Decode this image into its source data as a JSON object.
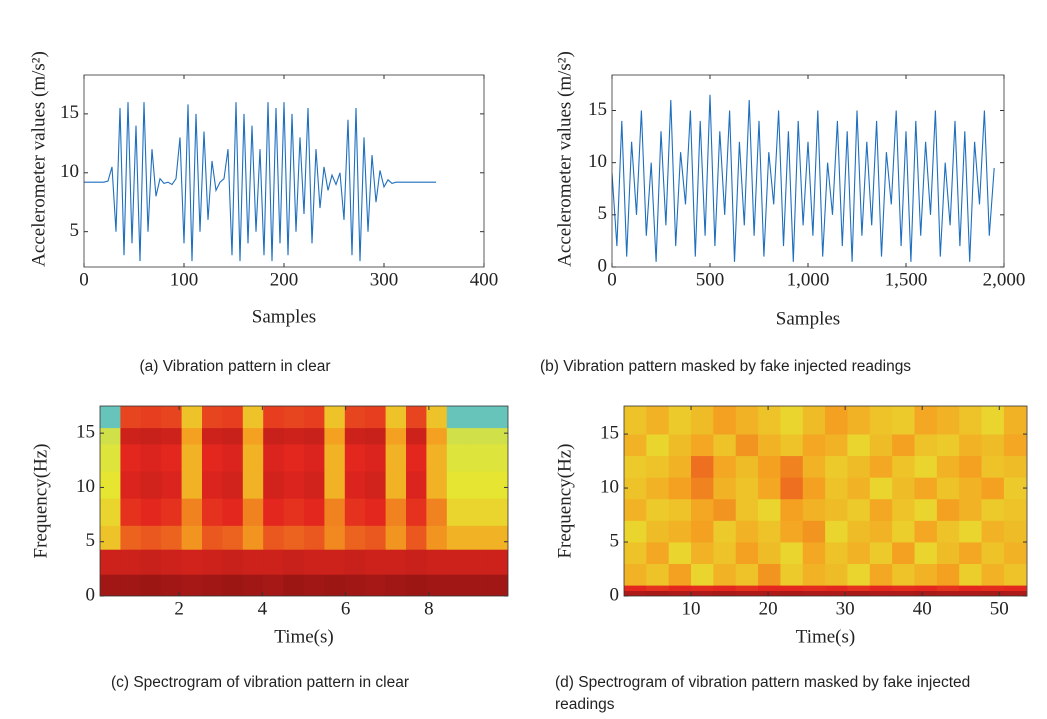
{
  "chart_data": [
    {
      "type": "line",
      "caption": "(a) Vibration pattern in clear",
      "x_label": "Samples",
      "y_label": "Accelerometer values (m/s²)",
      "color": "#1f6fbf",
      "x": [
        0,
        4,
        8,
        12,
        16,
        20,
        24,
        28,
        32,
        36,
        40,
        44,
        48,
        52,
        56,
        60,
        64,
        68,
        72,
        76,
        80,
        84,
        88,
        92,
        96,
        100,
        104,
        108,
        112,
        116,
        120,
        124,
        128,
        132,
        136,
        140,
        144,
        148,
        152,
        156,
        160,
        164,
        168,
        172,
        176,
        180,
        184,
        188,
        192,
        196,
        200,
        204,
        208,
        212,
        216,
        220,
        224,
        228,
        232,
        236,
        240,
        244,
        248,
        252,
        256,
        260,
        264,
        268,
        272,
        276,
        280,
        284,
        288,
        292,
        296,
        300,
        304,
        308,
        312,
        316,
        320,
        324,
        328,
        332,
        336,
        340,
        344,
        348,
        352
      ],
      "values": [
        9.2,
        9.2,
        9.2,
        9.2,
        9.2,
        9.2,
        9.3,
        10.5,
        5,
        15.5,
        3,
        16,
        4,
        14,
        2.5,
        16,
        5,
        12,
        8,
        9.5,
        9.1,
        9.2,
        9.0,
        9.5,
        13,
        4,
        15.8,
        2.5,
        15,
        5,
        13.5,
        6,
        11,
        8.5,
        9.2,
        9.5,
        12,
        3,
        16,
        2.5,
        15,
        4,
        14,
        5,
        12,
        3,
        16,
        2.5,
        15.5,
        4,
        16,
        3,
        15,
        5,
        13,
        6.5,
        15.5,
        4,
        12,
        7,
        10.5,
        8.5,
        9.8,
        9,
        10,
        6,
        14.5,
        3,
        15.5,
        2.5,
        13,
        5,
        11.5,
        7.5,
        10.2,
        8.8,
        9.4,
        9.1,
        9.2,
        9.2,
        9.2,
        9.2,
        9.2,
        9.2,
        9.2,
        9.2,
        9.2,
        9.2,
        9.2
      ],
      "xlim": [
        0,
        400
      ],
      "ylim": [
        2,
        18.3
      ],
      "xticks": [
        0,
        100,
        200,
        300,
        400
      ],
      "yticks": [
        5,
        10,
        15
      ]
    },
    {
      "type": "line",
      "caption": "(b) Vibration pattern masked by fake injected readings",
      "x_label": "Samples",
      "y_label": "Accelerometer values (m/s²)",
      "color": "#1f6fbf",
      "x": [
        0,
        25,
        50,
        75,
        100,
        125,
        150,
        175,
        200,
        225,
        250,
        275,
        300,
        325,
        350,
        375,
        400,
        425,
        450,
        475,
        500,
        525,
        550,
        575,
        600,
        625,
        650,
        675,
        700,
        725,
        750,
        775,
        800,
        825,
        850,
        875,
        900,
        925,
        950,
        975,
        1000,
        1025,
        1050,
        1075,
        1100,
        1125,
        1150,
        1175,
        1200,
        1225,
        1250,
        1275,
        1300,
        1325,
        1350,
        1375,
        1400,
        1425,
        1450,
        1475,
        1500,
        1525,
        1550,
        1575,
        1600,
        1625,
        1650,
        1675,
        1700,
        1725,
        1750,
        1775,
        1800,
        1825,
        1850,
        1875,
        1900,
        1925,
        1950
      ],
      "values": [
        9,
        2,
        14,
        1,
        12,
        5,
        15,
        3,
        10,
        0.5,
        13,
        4,
        16,
        2,
        11,
        6,
        15,
        1,
        14,
        3,
        16.5,
        2,
        13,
        5,
        15,
        0.5,
        12,
        4,
        16,
        3,
        14,
        1,
        11,
        6,
        15,
        2,
        13,
        0.5,
        14,
        4,
        12,
        3,
        15,
        1,
        10,
        5,
        14,
        2,
        13,
        0.5,
        15,
        3,
        12,
        4,
        14,
        1,
        11,
        6,
        15,
        2,
        13,
        0.5,
        14,
        3,
        12,
        5,
        15,
        1,
        10,
        4,
        14,
        2,
        13,
        0.5,
        12,
        6,
        15,
        3,
        9.5
      ],
      "xlim": [
        0,
        2000
      ],
      "ylim": [
        0,
        18.4
      ],
      "xticks": [
        0,
        500,
        {
          "value": 1000,
          "label": "1,000"
        },
        {
          "value": 1500,
          "label": "1,500"
        },
        {
          "value": 2000,
          "label": "2,000"
        }
      ],
      "yticks": [
        0,
        5,
        10,
        15
      ]
    },
    {
      "type": "heatmap",
      "caption": "(c) Spectrogram of vibration pattern in clear",
      "x_label": "Time(s)",
      "y_label": "Frequency(Hz)",
      "colormap": [
        "#3cb8e8",
        "#8fcf8c",
        "#e6e632",
        "#f4a020",
        "#e3261e",
        "#8a1212"
      ],
      "zlim": [
        0,
        1
      ],
      "xedges": [
        0.1,
        0.59,
        1.08,
        1.57,
        2.06,
        2.55,
        3.04,
        3.53,
        4.02,
        4.51,
        5.0,
        5.49,
        5.98,
        6.47,
        6.96,
        7.45,
        7.94,
        8.43,
        8.92,
        9.41,
        9.9
      ],
      "yedges": [
        0,
        2,
        4.3,
        6.5,
        9,
        11.5,
        14,
        15.5,
        17.5
      ],
      "z": [
        [
          0.95,
          0.95,
          0.96,
          0.95,
          0.94,
          0.95,
          0.96,
          0.95,
          0.94,
          0.96,
          0.95,
          0.96,
          0.95,
          0.94,
          0.95,
          0.96,
          0.95,
          0.95,
          0.95,
          0.95
        ],
        [
          0.85,
          0.85,
          0.86,
          0.85,
          0.84,
          0.85,
          0.86,
          0.85,
          0.85,
          0.86,
          0.85,
          0.85,
          0.86,
          0.85,
          0.85,
          0.86,
          0.85,
          0.85,
          0.85,
          0.85
        ],
        [
          0.5,
          0.7,
          0.72,
          0.7,
          0.62,
          0.72,
          0.7,
          0.62,
          0.72,
          0.7,
          0.72,
          0.64,
          0.7,
          0.72,
          0.62,
          0.72,
          0.62,
          0.55,
          0.55,
          0.55
        ],
        [
          0.45,
          0.78,
          0.8,
          0.78,
          0.65,
          0.78,
          0.8,
          0.65,
          0.8,
          0.78,
          0.8,
          0.65,
          0.78,
          0.8,
          0.65,
          0.78,
          0.65,
          0.45,
          0.45,
          0.45
        ],
        [
          0.4,
          0.82,
          0.84,
          0.82,
          0.55,
          0.82,
          0.84,
          0.55,
          0.84,
          0.82,
          0.84,
          0.55,
          0.82,
          0.84,
          0.55,
          0.82,
          0.55,
          0.4,
          0.4,
          0.4
        ],
        [
          0.38,
          0.8,
          0.82,
          0.8,
          0.55,
          0.8,
          0.82,
          0.55,
          0.82,
          0.8,
          0.82,
          0.55,
          0.8,
          0.82,
          0.55,
          0.8,
          0.55,
          0.38,
          0.38,
          0.38
        ],
        [
          0.35,
          0.85,
          0.86,
          0.85,
          0.6,
          0.85,
          0.86,
          0.6,
          0.86,
          0.85,
          0.86,
          0.6,
          0.85,
          0.86,
          0.6,
          0.85,
          0.6,
          0.35,
          0.35,
          0.35
        ],
        [
          0.1,
          0.75,
          0.76,
          0.75,
          0.5,
          0.75,
          0.76,
          0.5,
          0.76,
          0.75,
          0.76,
          0.5,
          0.75,
          0.76,
          0.5,
          0.75,
          0.5,
          0.1,
          0.1,
          0.1
        ]
      ],
      "xlim": [
        0.1,
        9.9
      ],
      "ylim": [
        0,
        17.5
      ],
      "xticks": [
        2,
        4,
        6,
        8
      ],
      "yticks": [
        0,
        5,
        10,
        15
      ]
    },
    {
      "type": "heatmap",
      "caption": "(d) Spectrogram of vibration pattern masked by fake injected readings",
      "x_label": "Time(s)",
      "y_label": "Frequency(Hz)",
      "colormap": [
        "#3cb8e8",
        "#8fcf8c",
        "#e6e632",
        "#f4a020",
        "#e3261e",
        "#8a1212"
      ],
      "zlim": [
        0,
        1
      ],
      "xedges": [
        1.3,
        4.2,
        7.1,
        10.0,
        12.9,
        15.8,
        18.7,
        21.6,
        24.5,
        27.4,
        30.3,
        33.2,
        36.1,
        39.0,
        41.9,
        44.8,
        47.7,
        50.6,
        53.5
      ],
      "yedges": [
        0,
        0.5,
        1,
        3,
        5,
        7,
        9,
        11,
        13,
        15,
        17.6
      ],
      "z": [
        [
          0.92,
          0.93,
          0.92,
          0.92,
          0.93,
          0.92,
          0.92,
          0.93,
          0.92,
          0.92,
          0.93,
          0.92,
          0.92,
          0.93,
          0.92,
          0.92,
          0.93,
          0.92
        ],
        [
          0.8,
          0.78,
          0.8,
          0.79,
          0.8,
          0.78,
          0.8,
          0.8,
          0.79,
          0.8,
          0.78,
          0.8,
          0.79,
          0.8,
          0.78,
          0.8,
          0.79,
          0.8
        ],
        [
          0.55,
          0.5,
          0.6,
          0.45,
          0.55,
          0.5,
          0.62,
          0.48,
          0.55,
          0.52,
          0.45,
          0.58,
          0.5,
          0.55,
          0.6,
          0.47,
          0.55,
          0.5
        ],
        [
          0.5,
          0.58,
          0.45,
          0.55,
          0.5,
          0.6,
          0.52,
          0.45,
          0.58,
          0.5,
          0.55,
          0.48,
          0.6,
          0.45,
          0.52,
          0.58,
          0.5,
          0.55
        ],
        [
          0.45,
          0.52,
          0.55,
          0.6,
          0.48,
          0.55,
          0.5,
          0.58,
          0.62,
          0.45,
          0.52,
          0.55,
          0.47,
          0.58,
          0.5,
          0.45,
          0.55,
          0.52
        ],
        [
          0.55,
          0.48,
          0.5,
          0.58,
          0.62,
          0.5,
          0.45,
          0.6,
          0.55,
          0.52,
          0.48,
          0.58,
          0.5,
          0.45,
          0.6,
          0.55,
          0.48,
          0.5
        ],
        [
          0.5,
          0.55,
          0.6,
          0.65,
          0.55,
          0.5,
          0.58,
          0.68,
          0.6,
          0.5,
          0.55,
          0.45,
          0.52,
          0.58,
          0.5,
          0.55,
          0.6,
          0.48
        ],
        [
          0.48,
          0.5,
          0.55,
          0.68,
          0.58,
          0.52,
          0.6,
          0.65,
          0.55,
          0.48,
          0.52,
          0.58,
          0.5,
          0.45,
          0.55,
          0.6,
          0.5,
          0.52
        ],
        [
          0.55,
          0.45,
          0.52,
          0.58,
          0.5,
          0.62,
          0.55,
          0.5,
          0.58,
          0.55,
          0.45,
          0.52,
          0.6,
          0.5,
          0.48,
          0.55,
          0.52,
          0.58
        ],
        [
          0.5,
          0.55,
          0.48,
          0.52,
          0.6,
          0.55,
          0.5,
          0.45,
          0.52,
          0.6,
          0.55,
          0.5,
          0.48,
          0.58,
          0.55,
          0.5,
          0.45,
          0.55
        ]
      ],
      "xlim": [
        1.3,
        53.6
      ],
      "ylim": [
        0,
        17.6
      ],
      "xticks": [
        10,
        20,
        30,
        40,
        50
      ],
      "yticks": [
        0,
        5,
        10,
        15
      ]
    }
  ]
}
